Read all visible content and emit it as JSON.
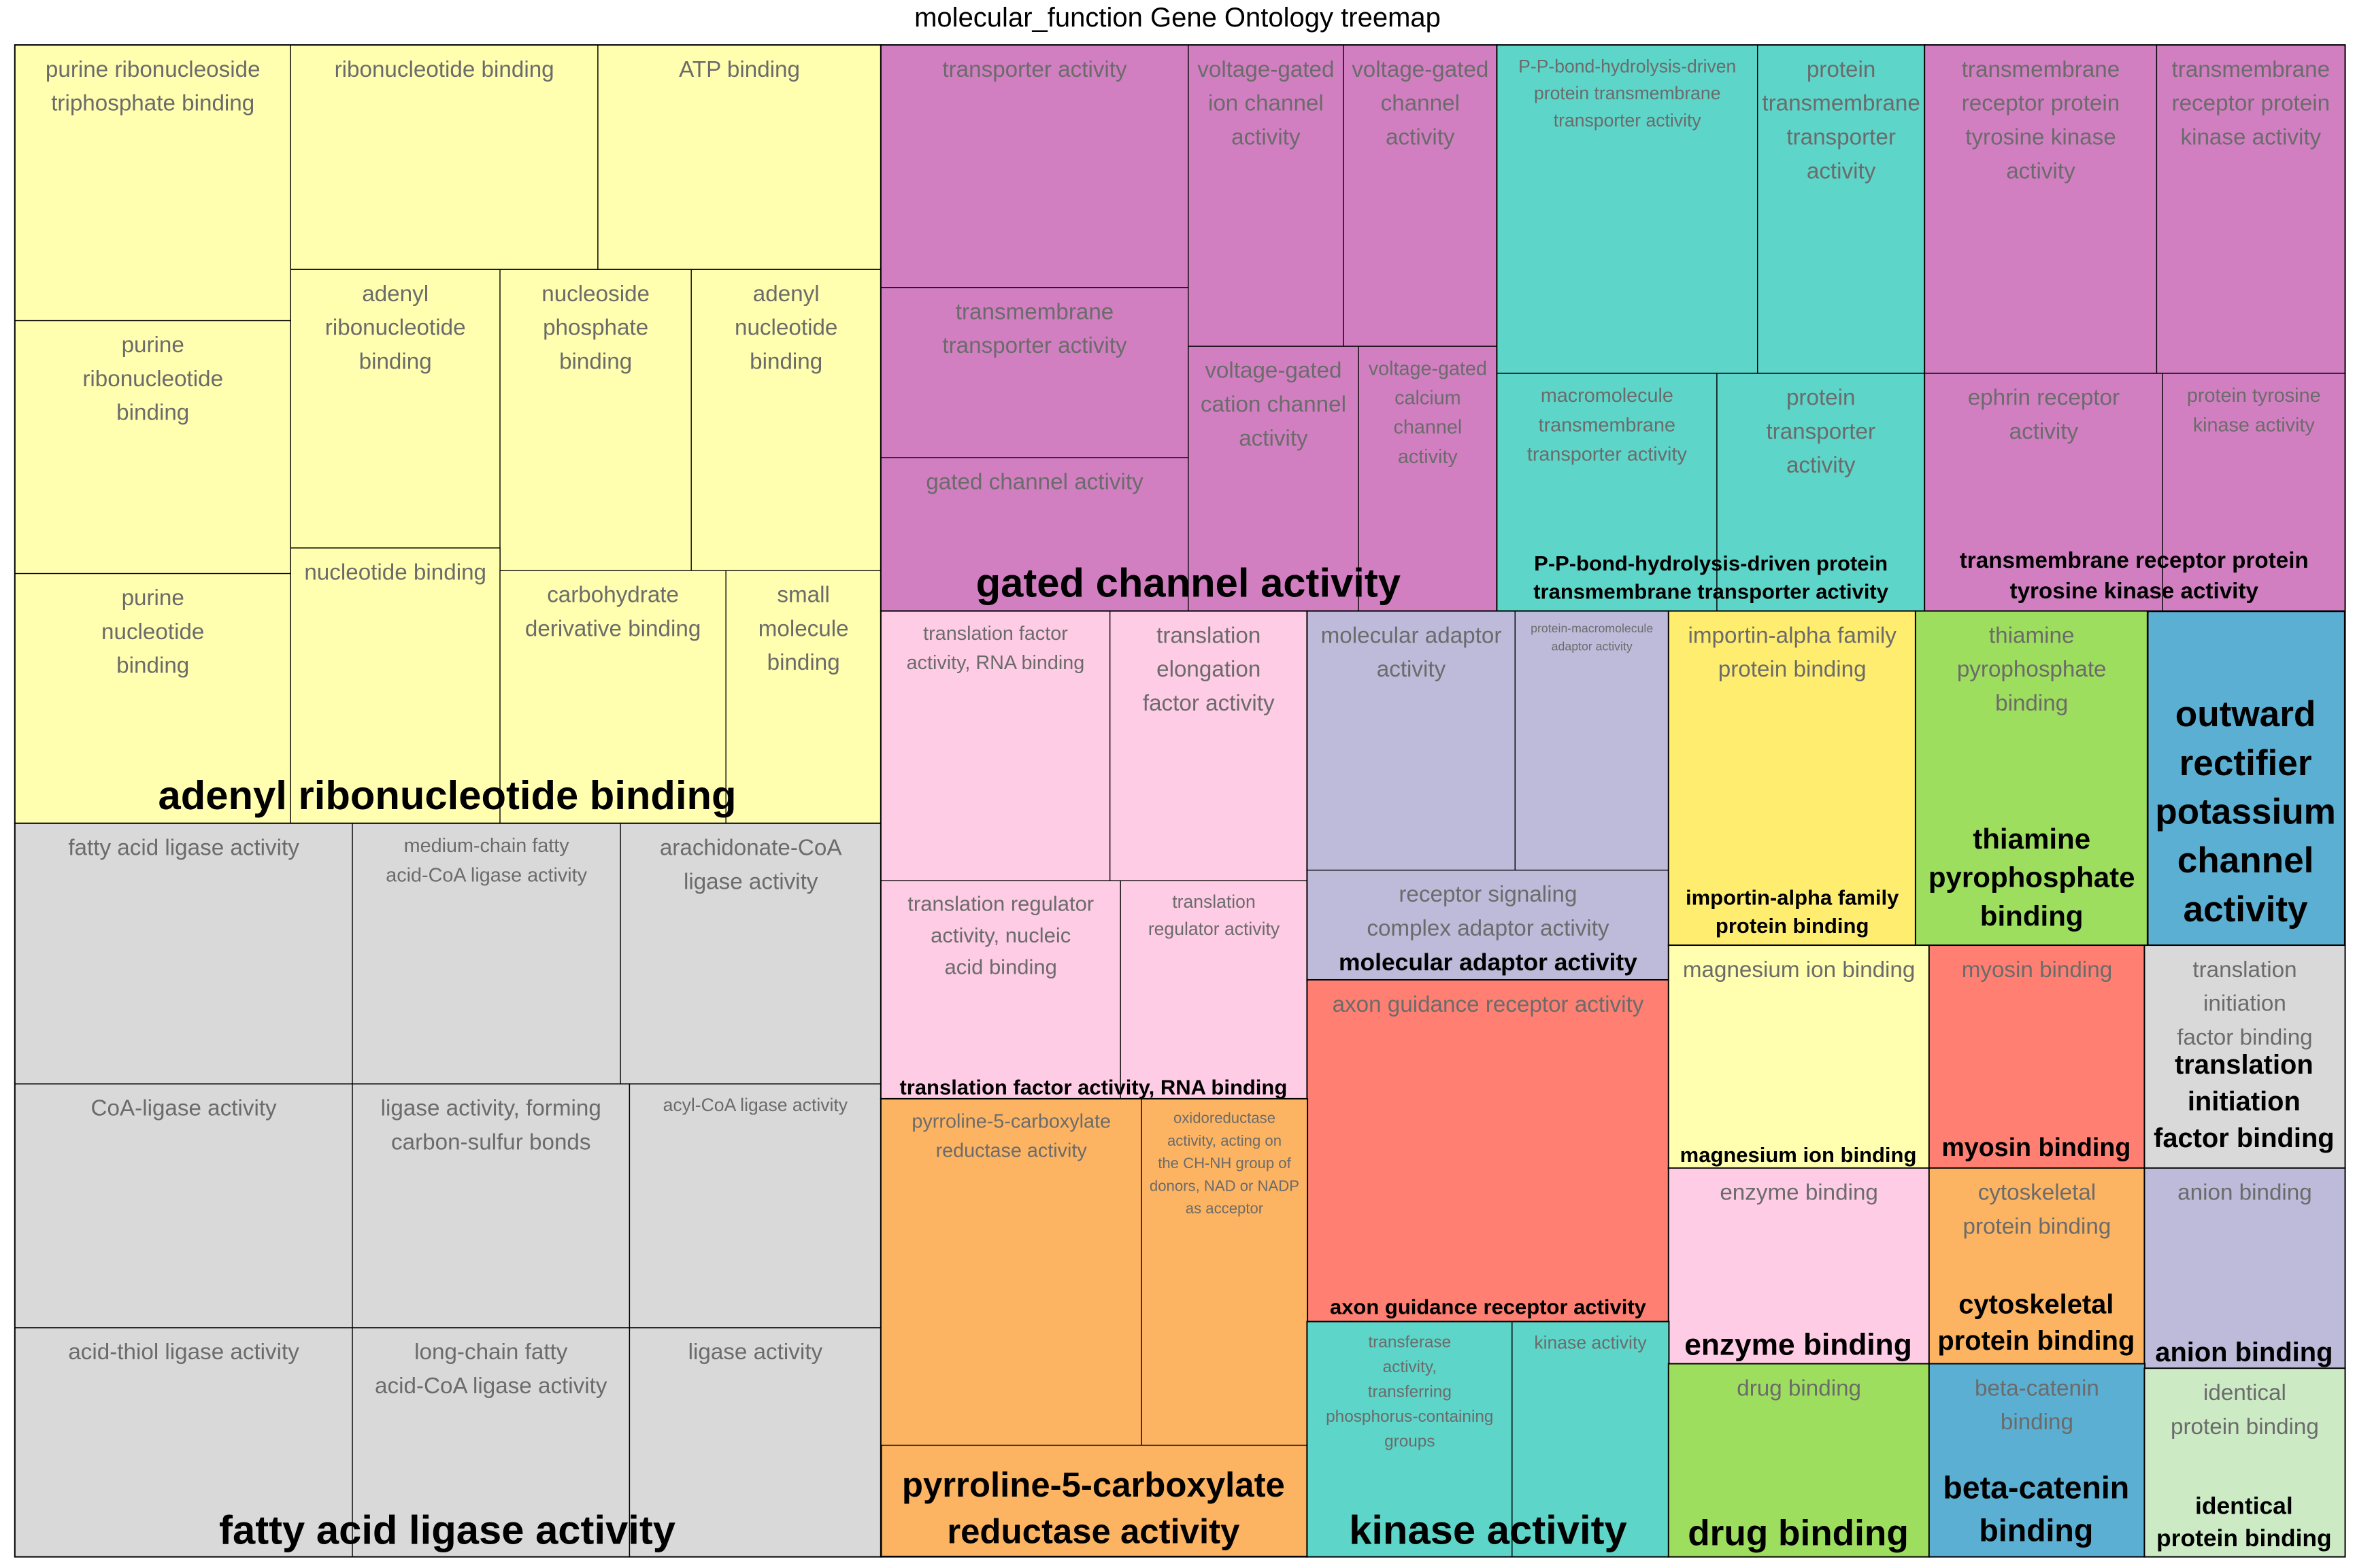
{
  "chart_data": {
    "type": "treemap",
    "title": "molecular_function Gene Ontology treemap",
    "groups": [
      {
        "label": "adenyl ribonucleotide binding",
        "color": "#FFFFAF",
        "items": [
          {
            "label": "purine ribonucleoside triphosphate binding"
          },
          {
            "label": "ribonucleotide binding"
          },
          {
            "label": "ATP binding"
          },
          {
            "label": "purine ribonucleotide binding"
          },
          {
            "label": "adenyl ribonucleotide binding"
          },
          {
            "label": "nucleoside phosphate binding"
          },
          {
            "label": "adenyl nucleotide binding"
          },
          {
            "label": "purine nucleotide binding"
          },
          {
            "label": "nucleotide binding"
          },
          {
            "label": "carbohydrate derivative binding"
          },
          {
            "label": "small molecule binding"
          }
        ]
      },
      {
        "label": "fatty acid ligase activity",
        "color": "#D9D9D9",
        "items": [
          {
            "label": "fatty acid ligase activity"
          },
          {
            "label": "medium-chain fatty acid-CoA ligase activity"
          },
          {
            "label": "arachidonate-CoA ligase activity"
          },
          {
            "label": "CoA-ligase activity"
          },
          {
            "label": "ligase activity, forming carbon-sulfur bonds"
          },
          {
            "label": "acyl-CoA ligase activity"
          },
          {
            "label": "acid-thiol ligase activity"
          },
          {
            "label": "long-chain fatty acid-CoA ligase activity"
          },
          {
            "label": "ligase activity"
          }
        ]
      },
      {
        "label": "gated channel activity",
        "color": "#D27FC2",
        "items": [
          {
            "label": "transporter activity"
          },
          {
            "label": "voltage-gated ion channel activity"
          },
          {
            "label": "voltage-gated channel activity"
          },
          {
            "label": "transmembrane transporter activity"
          },
          {
            "label": "voltage-gated cation channel activity"
          },
          {
            "label": "voltage-gated calcium channel activity"
          },
          {
            "label": "gated channel activity"
          }
        ]
      },
      {
        "label": "P-P-bond-hydrolysis-driven protein transmembrane transporter activity",
        "color": "#5ED5C9",
        "items": [
          {
            "label": "P-P-bond-hydrolysis-driven protein transmembrane transporter activity"
          },
          {
            "label": "protein transmembrane transporter activity"
          },
          {
            "label": "macromolecule transmembrane transporter activity"
          },
          {
            "label": "protein transporter activity"
          }
        ]
      },
      {
        "label": "transmembrane receptor protein tyrosine kinase activity",
        "color": "#D27FC2",
        "items": [
          {
            "label": "transmembrane receptor protein tyrosine kinase activity"
          },
          {
            "label": "transmembrane receptor protein kinase activity"
          },
          {
            "label": "ephrin receptor activity"
          },
          {
            "label": "protein tyrosine kinase activity"
          }
        ]
      },
      {
        "label": "translation factor activity, RNA binding",
        "color": "#FFCCE6",
        "items": [
          {
            "label": "translation factor activity, RNA binding"
          },
          {
            "label": "translation elongation factor activity"
          },
          {
            "label": "translation regulator activity, nucleic acid binding"
          },
          {
            "label": "translation regulator activity"
          }
        ]
      },
      {
        "label": "molecular adaptor activity",
        "color": "#BEBADA",
        "items": [
          {
            "label": "molecular adaptor activity"
          },
          {
            "label": "protein-macromolecule adaptor activity"
          },
          {
            "label": "receptor signaling complex adaptor activity"
          }
        ]
      },
      {
        "label": "importin-alpha family protein binding",
        "color": "#FFED6F",
        "items": [
          {
            "label": "importin-alpha family protein binding"
          }
        ]
      },
      {
        "label": "thiamine pyrophosphate binding",
        "color": "#9EDE5E",
        "items": [
          {
            "label": "thiamine pyrophosphate binding"
          }
        ]
      },
      {
        "label": "outward rectifier potassium channel activity",
        "color": "#5BAFD2",
        "items": []
      },
      {
        "label": "axon guidance receptor activity",
        "color": "#FF8072",
        "items": [
          {
            "label": "axon guidance receptor activity"
          }
        ]
      },
      {
        "label": "magnesium ion binding",
        "color": "#FFFFAF",
        "items": [
          {
            "label": "magnesium ion binding"
          }
        ]
      },
      {
        "label": "myosin binding",
        "color": "#FF8072",
        "items": [
          {
            "label": "myosin binding"
          }
        ]
      },
      {
        "label": "translation initiation factor binding",
        "color": "#D9D9D9",
        "items": [
          {
            "label": "translation initiation factor binding"
          }
        ]
      },
      {
        "label": "pyrroline-5-carboxylate reductase activity",
        "color": "#FDB462",
        "items": [
          {
            "label": "pyrroline-5-carboxylate reductase activity"
          },
          {
            "label": "oxidoreductase activity, acting on the CH-NH group of donors, NAD or NADP as acceptor"
          }
        ]
      },
      {
        "label": "enzyme binding",
        "color": "#FFCCE6",
        "items": [
          {
            "label": "enzyme binding"
          }
        ]
      },
      {
        "label": "cytoskeletal protein binding",
        "color": "#FDB462",
        "items": [
          {
            "label": "cytoskeletal protein binding"
          }
        ]
      },
      {
        "label": "anion binding",
        "color": "#BEBADA",
        "items": [
          {
            "label": "anion binding"
          }
        ]
      },
      {
        "label": "kinase activity",
        "color": "#5ED5C9",
        "items": [
          {
            "label": "transferase activity, transferring phosphorus-containing groups"
          },
          {
            "label": "kinase activity"
          }
        ]
      },
      {
        "label": "drug binding",
        "color": "#9EDE5E",
        "items": [
          {
            "label": "drug binding"
          }
        ]
      },
      {
        "label": "beta-catenin binding",
        "color": "#5BAFD2",
        "items": [
          {
            "label": "beta-catenin binding"
          }
        ]
      },
      {
        "label": "identical protein binding",
        "color": "#CCEBC5",
        "items": [
          {
            "label": "identical protein binding"
          }
        ]
      }
    ]
  }
}
